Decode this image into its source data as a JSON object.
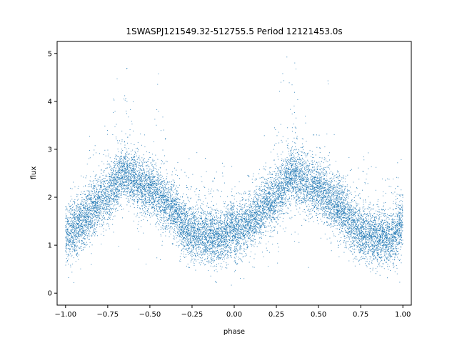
{
  "chart_data": {
    "type": "scatter",
    "title": "1SWASPJ121549.32-512755.5 Period 12121453.0s",
    "xlabel": "phase",
    "ylabel": "flux",
    "xlim": [
      -1.05,
      1.05
    ],
    "ylim": [
      -0.25,
      5.25
    ],
    "xticks": [
      -1.0,
      -0.75,
      -0.5,
      -0.25,
      0.0,
      0.25,
      0.5,
      0.75,
      1.0
    ],
    "xtick_labels": [
      "−1.00",
      "−0.75",
      "−0.50",
      "−0.25",
      "0.00",
      "0.25",
      "0.50",
      "0.75",
      "1.00"
    ],
    "yticks": [
      0,
      1,
      2,
      3,
      4,
      5
    ],
    "ytick_labels": [
      "0",
      "1",
      "2",
      "3",
      "4",
      "5"
    ],
    "grid": false,
    "marker_color": "#1f77b4",
    "marker": "point",
    "point_count": 14000,
    "phase_coverage": [
      -1.0,
      1.0
    ],
    "folding": "phase-folded light curve, pattern repeats with period 1.0 in phase",
    "envelope": {
      "phase": [
        0.0,
        0.05,
        0.1,
        0.15,
        0.2,
        0.25,
        0.3,
        0.35,
        0.4,
        0.45,
        0.5,
        0.55,
        0.6,
        0.65,
        0.7,
        0.75,
        0.8,
        0.85,
        0.9,
        0.95,
        1.0
      ],
      "typical_flux": [
        1.2,
        1.35,
        1.5,
        1.7,
        1.85,
        2.0,
        2.3,
        2.5,
        2.35,
        2.2,
        2.2,
        2.0,
        1.85,
        1.7,
        1.4,
        1.25,
        1.2,
        1.15,
        1.15,
        1.2,
        1.5
      ],
      "max_flux": [
        2.2,
        2.4,
        2.5,
        3.4,
        3.2,
        3.8,
        4.9,
        5.0,
        4.0,
        3.3,
        3.3,
        4.6,
        3.1,
        2.6,
        3.0,
        2.7,
        3.1,
        2.6,
        2.6,
        3.0,
        2.8
      ],
      "min_flux": [
        0.0,
        0.0,
        0.5,
        0.6,
        0.55,
        0.6,
        0.8,
        0.8,
        0.9,
        0.2,
        0.6,
        0.5,
        0.8,
        0.7,
        0.6,
        0.5,
        0.45,
        0.4,
        0.2,
        0.3,
        0.1
      ]
    }
  }
}
